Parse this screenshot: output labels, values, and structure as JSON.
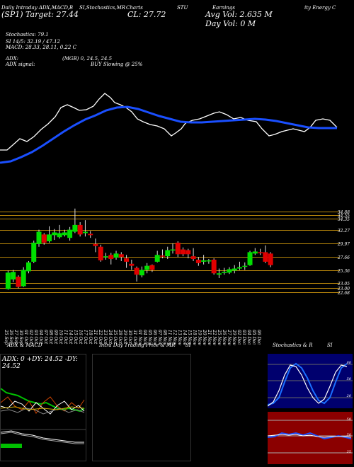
{
  "header": {
    "line1": [
      "Daily Intraday ADX,MACD,B",
      "SI,Stochastics,MR",
      "Charts",
      "STU",
      "Earnings",
      "Avg Vol: 2.635 M",
      "ity Energy C"
    ],
    "line1_sub": [
      "(SP1)",
      "Target: 27.44",
      "CL: 27.72",
      "Day Vol: 0   M"
    ],
    "stochastics": "Stochastics: 79.1",
    "si": "SI 14/5: 32.19 / 47.12",
    "macd": "MACD: 28.33, 28.11, 0.22  C",
    "adx": "ADX:",
    "adx_vals": "(MGB) 0, 24.5, 24.5",
    "adx_signal": "ADX signal:",
    "buy_signal": "BUY Slowing @ 25%"
  },
  "price_axis": [
    "34.88",
    "34.55",
    "34.35",
    "32.27",
    "29.97",
    "27.66",
    "25.36",
    "23.05",
    "23.00",
    "22.68"
  ],
  "x_axis": [
    "25 Sep",
    "26 Sep",
    "27 Sep",
    "30 Sep",
    "01 Oct",
    "02 Oct",
    "03 Oct",
    "04 Oct",
    "07 Oct",
    "08 Oct",
    "09 Oct",
    "10 Oct",
    "11 Oct",
    "14 Oct",
    "15 Oct",
    "16 Oct",
    "17 Oct",
    "18 Oct",
    "21 Oct",
    "22 Oct",
    "23 Oct",
    "24 Oct",
    "25 Oct",
    "28 Oct",
    "29 Oct",
    "30 Oct",
    "31 Oct",
    "01 Nov",
    "04 Nov",
    "05 Nov",
    "06 Nov",
    "07 Nov",
    "08 Nov",
    "11 Nov",
    "12 Nov",
    "13 Nov",
    "14 Nov",
    "15 Nov",
    "18 Nov",
    "19 Nov",
    "20 Nov",
    "21 Nov",
    "22 Nov",
    "25 Nov",
    "26 Nov",
    "27 Nov",
    "29 Nov",
    "02 Dec",
    "03 Dec",
    "04 Dec",
    "05 Dec",
    "06 Dec"
  ],
  "candles": [
    {
      "o": 23.6,
      "c": 26.0,
      "h": 26.3,
      "l": 23.5
    },
    {
      "o": 25.0,
      "c": 26.1,
      "h": 26.4,
      "l": 24.6
    },
    {
      "o": 25.4,
      "c": 23.9,
      "h": 25.6,
      "l": 23.7
    },
    {
      "o": 24.0,
      "c": 26.4,
      "h": 26.8,
      "l": 23.9
    },
    {
      "o": 26.2,
      "c": 27.5,
      "h": 27.7,
      "l": 25.9
    },
    {
      "o": 27.6,
      "c": 30.4,
      "h": 30.7,
      "l": 27.4
    },
    {
      "o": 30.2,
      "c": 32.0,
      "h": 32.3,
      "l": 29.8
    },
    {
      "o": 31.6,
      "c": 30.4,
      "h": 31.8,
      "l": 30.1
    },
    {
      "o": 30.6,
      "c": 31.6,
      "h": 32.8,
      "l": 30.4
    },
    {
      "o": 31.5,
      "c": 31.9,
      "h": 32.4,
      "l": 30.8
    },
    {
      "o": 31.2,
      "c": 31.8,
      "h": 33.0,
      "l": 31.0
    },
    {
      "o": 31.5,
      "c": 31.9,
      "h": 32.3,
      "l": 31.3
    },
    {
      "o": 31.1,
      "c": 32.3,
      "h": 32.7,
      "l": 30.7
    },
    {
      "o": 32.0,
      "c": 33.0,
      "h": 35.4,
      "l": 31.8
    },
    {
      "o": 33.0,
      "c": 31.6,
      "h": 33.4,
      "l": 31.3
    },
    {
      "o": 31.8,
      "c": 32.0,
      "h": 33.7,
      "l": 31.3
    },
    {
      "o": 31.7,
      "c": 31.5,
      "h": 32.1,
      "l": 31.1
    },
    {
      "o": 30.2,
      "c": 29.9,
      "h": 31.0,
      "l": 29.0
    },
    {
      "o": 29.8,
      "c": 27.8,
      "h": 30.1,
      "l": 27.6
    },
    {
      "o": 28.4,
      "c": 28.4,
      "h": 28.9,
      "l": 27.9
    },
    {
      "o": 28.6,
      "c": 28.0,
      "h": 28.9,
      "l": 27.2
    },
    {
      "o": 28.2,
      "c": 28.8,
      "h": 29.2,
      "l": 27.9
    },
    {
      "o": 28.7,
      "c": 28.3,
      "h": 29.0,
      "l": 27.7
    },
    {
      "o": 28.1,
      "c": 27.6,
      "h": 28.6,
      "l": 26.7
    },
    {
      "o": 27.3,
      "c": 27.0,
      "h": 27.9,
      "l": 26.4
    },
    {
      "o": 26.7,
      "c": 25.7,
      "h": 26.9,
      "l": 24.7
    },
    {
      "o": 25.6,
      "c": 26.4,
      "h": 26.9,
      "l": 25.3
    },
    {
      "o": 26.4,
      "c": 27.0,
      "h": 27.4,
      "l": 25.9
    },
    {
      "o": 27.1,
      "c": 26.4,
      "h": 27.2,
      "l": 26.1
    },
    {
      "o": 27.6,
      "c": 28.6,
      "h": 29.2,
      "l": 27.5
    },
    {
      "o": 28.5,
      "c": 28.4,
      "h": 29.4,
      "l": 28.1
    },
    {
      "o": 28.4,
      "c": 29.3,
      "h": 29.8,
      "l": 28.0
    },
    {
      "o": 29.3,
      "c": 29.4,
      "h": 30.3,
      "l": 28.8
    },
    {
      "o": 30.4,
      "c": 28.7,
      "h": 30.6,
      "l": 28.3
    },
    {
      "o": 29.4,
      "c": 28.7,
      "h": 29.7,
      "l": 28.4
    },
    {
      "o": 29.3,
      "c": 28.7,
      "h": 29.5,
      "l": 28.1
    },
    {
      "o": 28.4,
      "c": 28.0,
      "h": 29.6,
      "l": 27.7
    },
    {
      "o": 27.9,
      "c": 27.4,
      "h": 28.3,
      "l": 27.0
    },
    {
      "o": 27.6,
      "c": 27.8,
      "h": 28.6,
      "l": 27.2
    },
    {
      "o": 27.7,
      "c": 27.8,
      "h": 28.0,
      "l": 27.3
    },
    {
      "o": 27.9,
      "c": 25.9,
      "h": 28.1,
      "l": 25.7
    },
    {
      "o": 25.7,
      "c": 25.9,
      "h": 26.6,
      "l": 25.2
    },
    {
      "o": 26.0,
      "c": 26.1,
      "h": 26.7,
      "l": 25.7
    },
    {
      "o": 26.0,
      "c": 26.5,
      "h": 26.8,
      "l": 25.8
    },
    {
      "o": 26.3,
      "c": 26.6,
      "h": 27.1,
      "l": 25.9
    },
    {
      "o": 26.6,
      "c": 26.8,
      "h": 27.6,
      "l": 26.4
    },
    {
      "o": 26.9,
      "c": 27.0,
      "h": 27.5,
      "l": 26.4
    },
    {
      "o": 27.1,
      "c": 29.0,
      "h": 29.2,
      "l": 27.0
    },
    {
      "o": 28.8,
      "c": 29.1,
      "h": 29.6,
      "l": 28.6
    },
    {
      "o": 29.0,
      "c": 28.9,
      "h": 29.5,
      "l": 28.6
    },
    {
      "o": 29.0,
      "c": 27.6,
      "h": 30.0,
      "l": 27.4
    },
    {
      "o": 28.8,
      "c": 27.1,
      "h": 29.0,
      "l": 26.8
    }
  ],
  "indicator_panels": {
    "adx_title": "ADX & MACD",
    "adx_readout": "ADX: 0  +DY: 24.52  -DY: 24.52",
    "intraday_title": "Intra Day Trading Price  & MR",
    "intraday_suffix": "SI",
    "stoch_title": "Stochastics & R",
    "stoch_suffix": "SI",
    "stoch_axis": [
      "80",
      "50",
      "20"
    ],
    "rsi_axis": [
      "50",
      "50",
      "25"
    ]
  },
  "colors": {
    "up": "#00e000",
    "down": "#e00000",
    "ma": "#1a4fff",
    "level": "#b8860b",
    "stochbg": "#00006e",
    "rsibg": "#8b0000"
  }
}
